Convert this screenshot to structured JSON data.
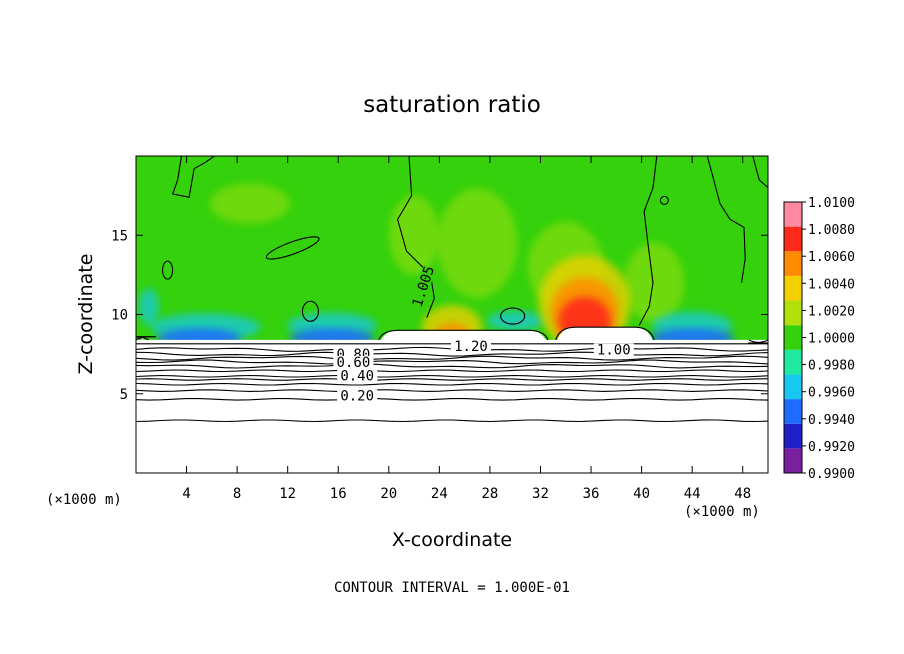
{
  "chart_data": {
    "type": "heatmap",
    "title": "saturation ratio",
    "xlabel": "X-coordinate",
    "ylabel": "Z-coordinate",
    "x_unit": "(×1000 m)",
    "y_unit": "(×1000 m)",
    "xlim": [
      0,
      50
    ],
    "ylim": [
      0,
      20
    ],
    "x_ticks": [
      4,
      8,
      12,
      16,
      20,
      24,
      28,
      32,
      36,
      40,
      44,
      48
    ],
    "y_ticks": [
      5,
      10,
      15
    ],
    "grid": false,
    "legend_placement": "right",
    "colorbar": {
      "levels": [
        "0.9900",
        "0.9920",
        "0.9940",
        "0.9960",
        "0.9980",
        "1.0000",
        "1.0020",
        "1.0040",
        "1.0060",
        "1.0080",
        "1.0100"
      ],
      "colors": [
        "#7a1fa0",
        "#2020c8",
        "#1e6cff",
        "#17c8f0",
        "#20e8a0",
        "#34d10c",
        "#b2e00a",
        "#f4d000",
        "#ff8c00",
        "#ff2a1a",
        "#ff8aa0"
      ]
    },
    "contour_interval": "CONTOUR INTERVAL = 1.000E-01",
    "contour_labels": [
      {
        "text": "1.20",
        "x": 26.5,
        "z": 7.75
      },
      {
        "text": "1.00",
        "x": 37.8,
        "z": 7.55
      },
      {
        "text": "1.005",
        "x": 23.0,
        "z": 11.7
      },
      {
        "text": "0.80",
        "x": 17.2,
        "z": 7.25
      },
      {
        "text": "0.60",
        "x": 17.2,
        "z": 6.75
      },
      {
        "text": "0.40",
        "x": 17.5,
        "z": 5.9
      },
      {
        "text": "0.20",
        "x": 17.5,
        "z": 4.65
      }
    ],
    "hot_spots": [
      {
        "x": 35.5,
        "z": 11.0,
        "value": 1.0075
      },
      {
        "x": 25.0,
        "z": 9.5,
        "value": 1.004
      }
    ],
    "dry_spots": [
      {
        "x": 5.0,
        "z": 8.0,
        "value": 0.9935
      },
      {
        "x": 15.5,
        "z": 8.0,
        "value": 0.9945
      },
      {
        "x": 44.0,
        "z": 8.0,
        "value": 0.994
      }
    ]
  }
}
